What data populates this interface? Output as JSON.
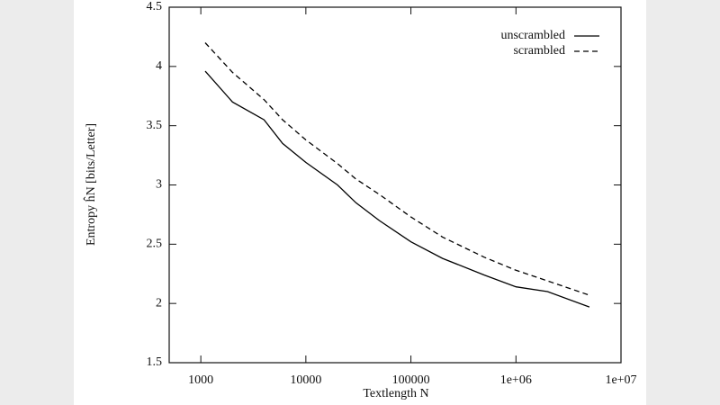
{
  "chart_data": {
    "type": "line",
    "xlabel": "Textlength N",
    "ylabel": "Entropy ĥN  [bits/Letter]",
    "x": [
      1100,
      2000,
      4000,
      6000,
      10000,
      20000,
      30000,
      50000,
      100000,
      200000,
      500000,
      1000000,
      2000000,
      5000000
    ],
    "series": [
      {
        "name": "unscrambled",
        "color": "#000000",
        "line_style": "solid",
        "values": [
          3.96,
          3.7,
          3.55,
          3.35,
          3.19,
          3.0,
          2.85,
          2.7,
          2.52,
          2.38,
          2.24,
          2.14,
          2.1,
          1.97
        ]
      },
      {
        "name": "scrambled",
        "color": "#000000",
        "line_style": "dashed",
        "values": [
          4.2,
          3.95,
          3.72,
          3.55,
          3.38,
          3.18,
          3.05,
          2.92,
          2.73,
          2.56,
          2.39,
          2.28,
          2.19,
          2.07
        ]
      }
    ],
    "xscale": "log",
    "xlim": [
      500,
      10000000
    ],
    "xticks": [
      1000,
      10000,
      100000,
      {
        "value": 1000000,
        "label": "1e+06"
      },
      {
        "value": 10000000,
        "label": "1e+07"
      }
    ],
    "ylim": [
      1.5,
      4.5
    ],
    "yticks": [
      1.5,
      2,
      2.5,
      3,
      3.5,
      4,
      4.5
    ],
    "legend": "upper right"
  }
}
